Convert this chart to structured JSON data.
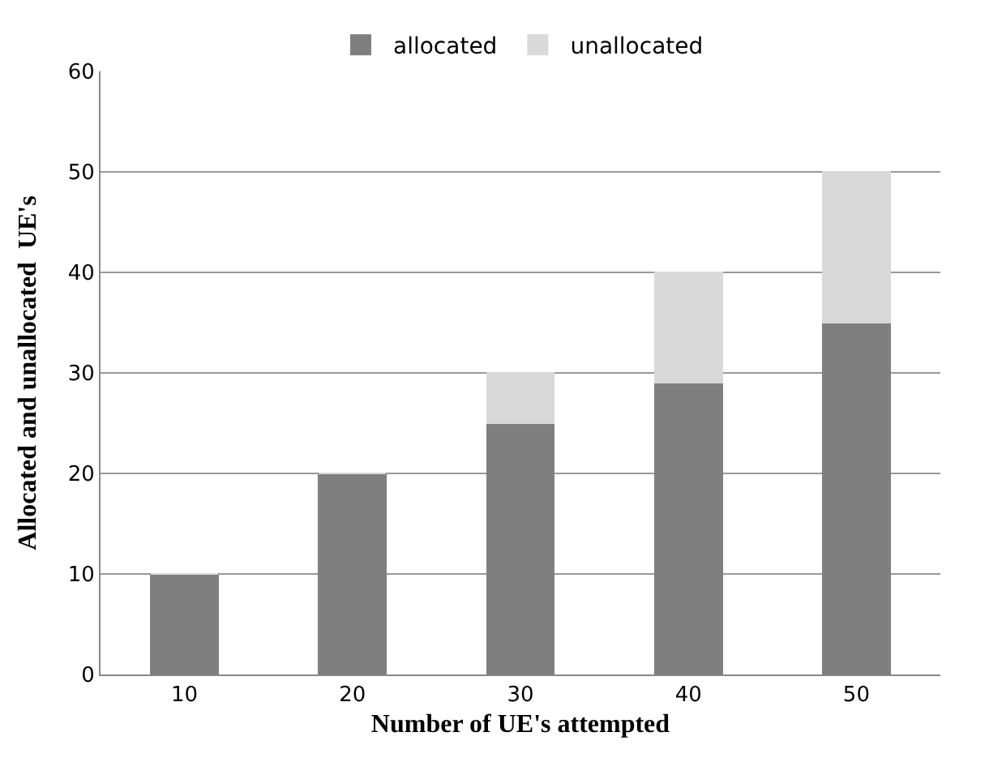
{
  "chart_data": {
    "type": "bar",
    "stacked": true,
    "xlabel": "Number of UE's attempted",
    "ylabel": "Allocated and unallocated  UE's",
    "categories": [
      "10",
      "20",
      "30",
      "40",
      "50"
    ],
    "series": [
      {
        "name": "allocated",
        "color": "#7f7f7f",
        "values": [
          10,
          20,
          25,
          29,
          35
        ]
      },
      {
        "name": "unallocated",
        "color": "#d9d9d9",
        "values": [
          0,
          0,
          5,
          11,
          15
        ]
      }
    ],
    "ylim": [
      0,
      60
    ],
    "yticks": [
      0,
      10,
      20,
      30,
      40,
      50,
      60
    ],
    "grid": "y",
    "legend": "top"
  }
}
